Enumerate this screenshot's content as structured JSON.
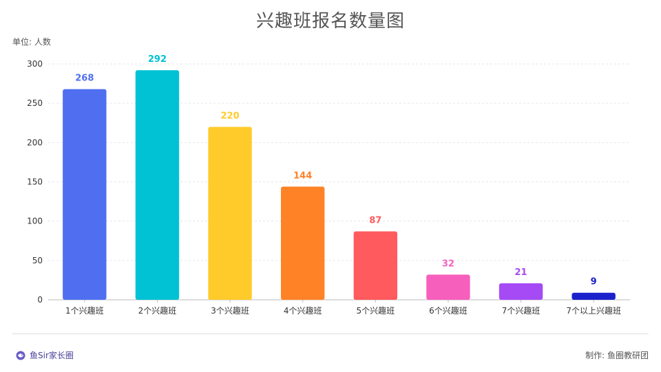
{
  "title": "兴趣班报名数量图",
  "unit_label": "单位: 人数",
  "footer": {
    "brand": "鱼Sir家长圈",
    "credit": "制作: 鱼圈教研团"
  },
  "chart_data": {
    "type": "bar",
    "title": "兴趣班报名数量图",
    "xlabel": "",
    "ylabel": "单位: 人数",
    "categories": [
      "1个兴趣班",
      "2个兴趣班",
      "3个兴趣班",
      "4个兴趣班",
      "5个兴趣班",
      "6个兴趣班",
      "7个兴趣班",
      "7个以上兴趣班"
    ],
    "values": [
      268,
      292,
      220,
      144,
      87,
      32,
      21,
      9
    ],
    "colors": [
      "#4f6ff0",
      "#00c2d4",
      "#ffcb2b",
      "#ff8227",
      "#ff5a5e",
      "#f75fbd",
      "#a54af5",
      "#1b22cc"
    ],
    "ylim": [
      0,
      300
    ],
    "yticks": [
      0,
      50,
      100,
      150,
      200,
      250,
      300
    ],
    "grid": true,
    "legend": "none"
  }
}
